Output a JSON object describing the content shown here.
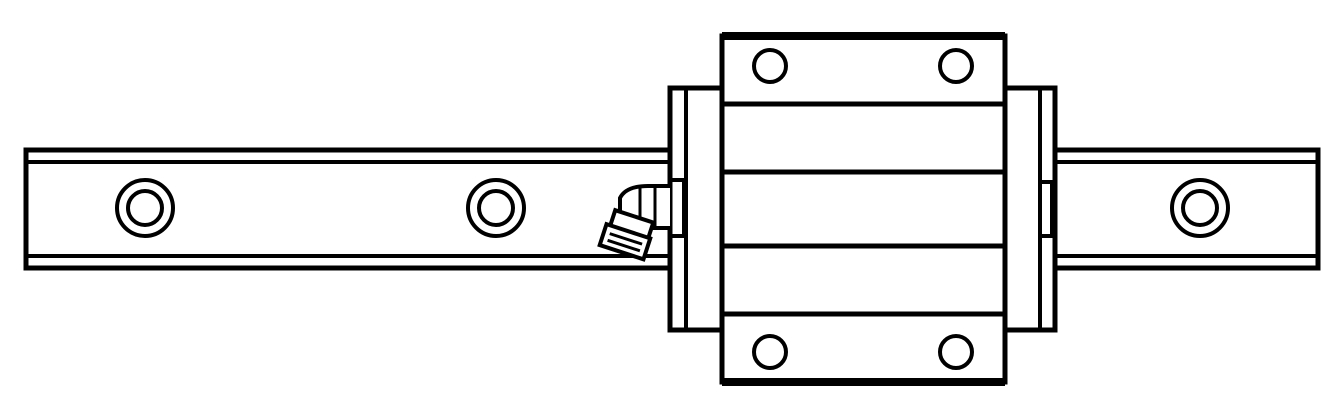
{
  "drawing": {
    "subject": "linear-guide-rail-with-carriage-block",
    "colors": {
      "line": "#000000",
      "background": "#ffffff"
    },
    "rail": {
      "mounting_hole_count": 3
    },
    "carriage": {
      "mounting_hole_count": 4,
      "groove_count": 4
    },
    "grease_fitting": {
      "present": true
    }
  }
}
